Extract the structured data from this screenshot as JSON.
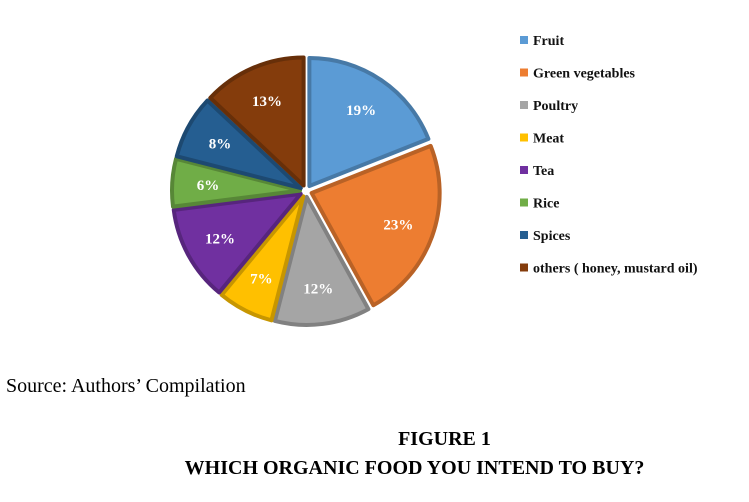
{
  "chart_data": {
    "type": "pie",
    "slices": [
      {
        "label": "Fruit",
        "value": 19,
        "display": "19%",
        "color": "#5B9BD5"
      },
      {
        "label": "Green vegetables",
        "value": 23,
        "display": "23%",
        "color": "#ED7D31"
      },
      {
        "label": "Poultry",
        "value": 12,
        "display": "12%",
        "color": "#A5A5A5"
      },
      {
        "label": "Meat",
        "value": 7,
        "display": "7%",
        "color": "#FFC000"
      },
      {
        "label": "Tea",
        "value": 12,
        "display": "12%",
        "color": "#7030A0"
      },
      {
        "label": "Rice",
        "value": 6,
        "display": "6%",
        "color": "#70AD47"
      },
      {
        "label": "Spices",
        "value": 8,
        "display": "8%",
        "color": "#255E91"
      },
      {
        "label": "others ( honey, mustard oil)",
        "value": 13,
        "display": "13%",
        "color": "#843C0C"
      }
    ],
    "legend_placement": "right",
    "style": "3d-exploded"
  },
  "source": "Source: Authors’ Compilation",
  "figure": {
    "number": "FIGURE 1",
    "title": "WHICH ORGANIC FOOD YOU INTEND TO BUY?"
  }
}
